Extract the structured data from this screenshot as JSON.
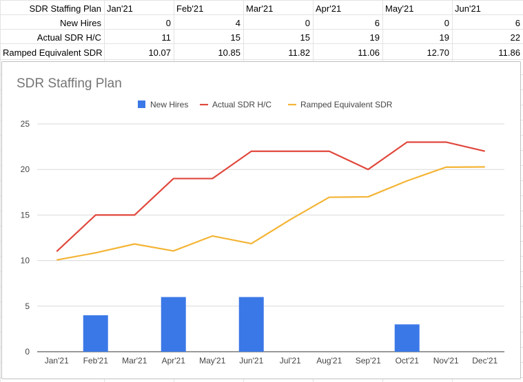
{
  "sheet": {
    "columns": [
      "Jan'21",
      "Feb'21",
      "Mar'21",
      "Apr'21",
      "May'21",
      "Jun'21"
    ],
    "rows": [
      {
        "label": "New Hires",
        "values": [
          "0",
          "4",
          "0",
          "6",
          "0",
          "6"
        ]
      },
      {
        "label": "Actual SDR H/C",
        "values": [
          "11",
          "15",
          "15",
          "19",
          "19",
          "22"
        ]
      },
      {
        "label": "Ramped Equivalent SDR",
        "values": [
          "10.07",
          "10.85",
          "11.82",
          "11.06",
          "12.70",
          "11.86"
        ]
      }
    ],
    "title_cell": "SDR Staffing Plan"
  },
  "chart_data": {
    "type": "bar+line",
    "title": "SDR Staffing Plan",
    "categories": [
      "Jan'21",
      "Feb'21",
      "Mar'21",
      "Apr'21",
      "May'21",
      "Jun'21",
      "Jul'21",
      "Aug'21",
      "Sep'21",
      "Oct'21",
      "Nov'21",
      "Dec'21"
    ],
    "series": [
      {
        "name": "New Hires",
        "kind": "bar",
        "color": "#3b78e7",
        "values": [
          0,
          4,
          0,
          6,
          0,
          6,
          0,
          0,
          0,
          3,
          0,
          0
        ]
      },
      {
        "name": "Actual SDR H/C",
        "kind": "line",
        "color": "#e0473c",
        "values": [
          11,
          15,
          15,
          19,
          19,
          22,
          22,
          22,
          20,
          23,
          23,
          22
        ]
      },
      {
        "name": "Ramped Equivalent SDR",
        "kind": "line",
        "color": "#f4b434",
        "values": [
          10.07,
          10.85,
          11.82,
          11.06,
          12.7,
          11.86,
          14.5,
          16.95,
          17.0,
          18.75,
          20.25,
          20.28
        ]
      }
    ],
    "ylim": [
      0,
      25
    ],
    "yticks": [
      0,
      5,
      10,
      15,
      20,
      25
    ],
    "grid": true,
    "legend": "top"
  }
}
